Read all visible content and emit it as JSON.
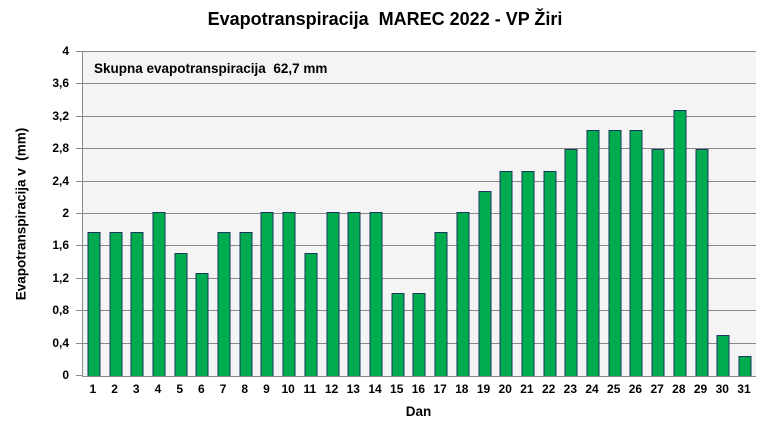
{
  "chart_data": {
    "type": "bar",
    "title": "Evapotranspiracija  MAREC 2022 - VP Žiri",
    "annotation": "Skupna evapotranspiracija  62,7 mm",
    "total_evapotranspiration_mm": "62,7",
    "xlabel": "Dan",
    "ylabel": "Evapotranspiracija v  (mm)",
    "categories": [
      1,
      2,
      3,
      4,
      5,
      6,
      7,
      8,
      9,
      10,
      11,
      12,
      13,
      14,
      15,
      16,
      17,
      18,
      19,
      20,
      21,
      22,
      23,
      24,
      25,
      26,
      27,
      28,
      29,
      30,
      31
    ],
    "values": [
      1.78,
      1.78,
      1.78,
      2.03,
      1.52,
      1.27,
      1.78,
      1.78,
      2.03,
      2.03,
      1.52,
      2.03,
      2.03,
      2.03,
      1.02,
      1.02,
      1.78,
      2.03,
      2.29,
      2.53,
      2.53,
      2.53,
      2.8,
      3.04,
      3.04,
      3.04,
      2.8,
      3.29,
      2.8,
      0.51,
      0.25
    ],
    "ylim": [
      0,
      4
    ],
    "ytick_step": 0.4,
    "ytick_labels_top_down": [
      "4",
      "3,6",
      "3,2",
      "2,8",
      "2,4",
      "2",
      "1,6",
      "1,2",
      "0,8",
      "0,4",
      "0"
    ],
    "grid": true,
    "legend": false,
    "colors": {
      "bar_fill": "#00AC4F",
      "bar_border": "#17375D",
      "plot_bg": "#F4F4F5",
      "gridline": "#8A8A8A",
      "axis": "#8A8A8A",
      "text": "#000000",
      "background": "#FFFFFF"
    }
  }
}
